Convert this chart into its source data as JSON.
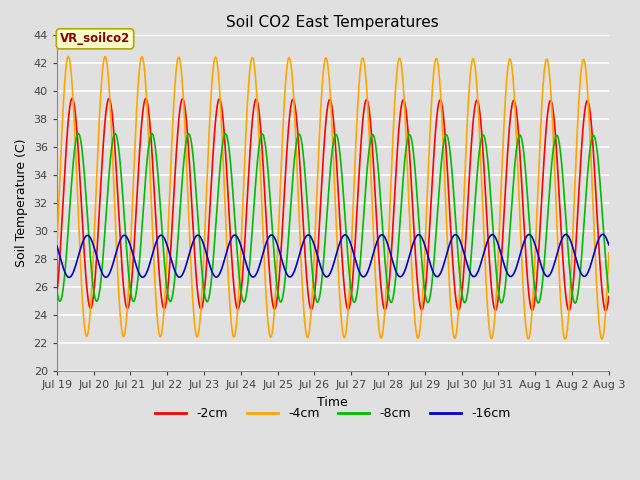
{
  "title": "Soil CO2 East Temperatures",
  "xlabel": "Time",
  "ylabel": "Soil Temperature (C)",
  "ylim": [
    20,
    44
  ],
  "xtick_labels": [
    "Jul 19",
    "Jul 20",
    "Jul 21",
    "Jul 22",
    "Jul 23",
    "Jul 24",
    "Jul 25",
    "Jul 26",
    "Jul 27",
    "Jul 28",
    "Jul 29",
    "Jul 30",
    "Jul 31",
    "Aug 1",
    "Aug 2",
    "Aug 3"
  ],
  "xtick_positions": [
    0,
    24,
    48,
    72,
    96,
    120,
    144,
    168,
    192,
    216,
    240,
    264,
    288,
    312,
    336,
    360
  ],
  "background_color": "#e0e0e0",
  "plot_bg_color": "#e0e0e0",
  "grid_color": "#ffffff",
  "series": [
    {
      "label": "-2cm",
      "color": "#ff0000",
      "amplitude": 7.5,
      "mean": 32.0,
      "period": 24.0,
      "phase_hours": 4.0,
      "trend": -0.012
    },
    {
      "label": "-4cm",
      "color": "#ffa500",
      "amplitude": 10.0,
      "mean": 32.5,
      "period": 24.0,
      "phase_hours": 1.5,
      "trend": -0.015
    },
    {
      "label": "-8cm",
      "color": "#00bb00",
      "amplitude": 6.0,
      "mean": 31.0,
      "period": 24.0,
      "phase_hours": 8.0,
      "trend": -0.01
    },
    {
      "label": "-16cm",
      "color": "#0000cc",
      "amplitude": 1.5,
      "mean": 28.2,
      "period": 24.0,
      "phase_hours": 14.0,
      "trend": 0.005
    }
  ],
  "annotation_text": "VR_soilco2",
  "title_fontsize": 11,
  "label_fontsize": 9,
  "tick_fontsize": 8,
  "legend_fontsize": 9
}
